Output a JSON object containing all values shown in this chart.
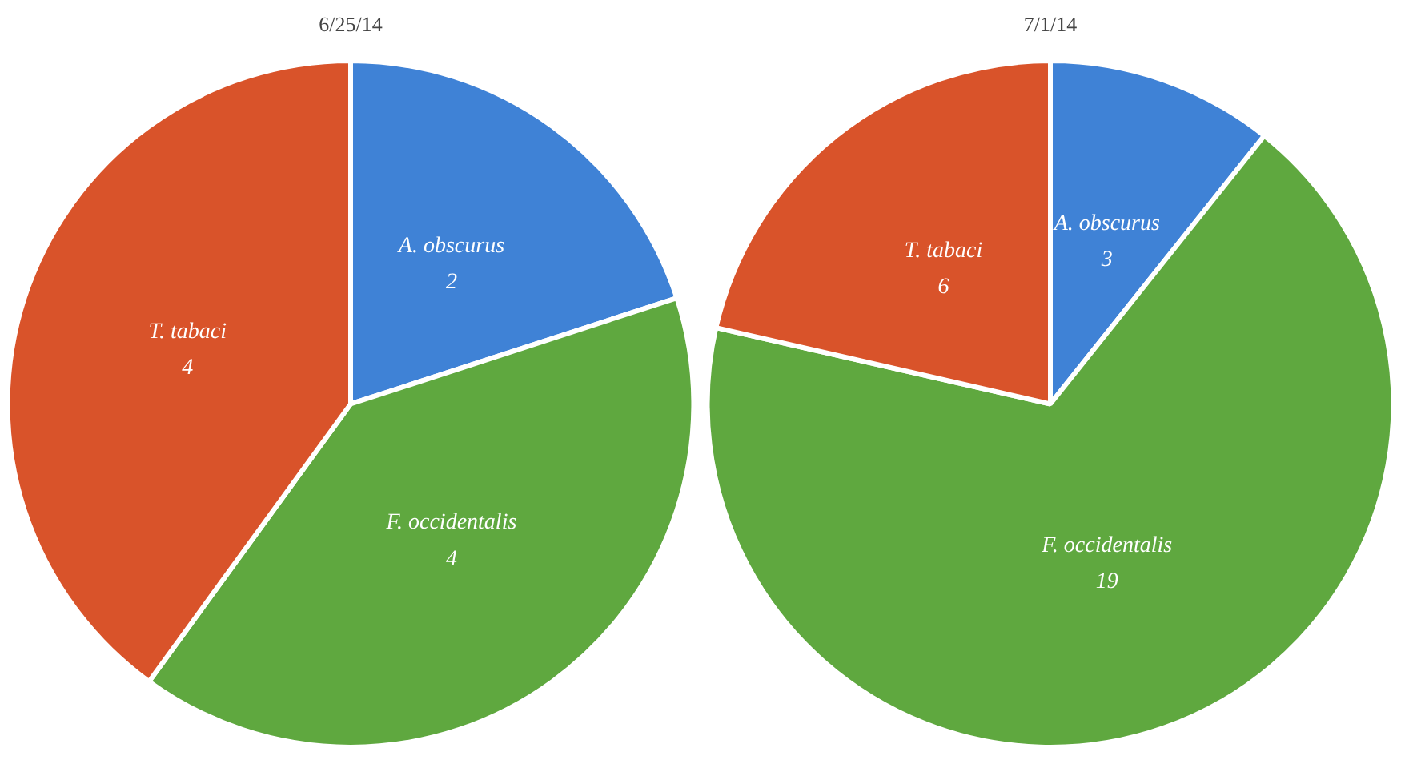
{
  "chart_data": [
    {
      "type": "pie",
      "title": "6/25/14",
      "categories": [
        "A. obscurus",
        "F. occidentalis",
        "T. tabaci"
      ],
      "values": [
        2,
        4,
        4
      ],
      "colors": [
        "#3f82d6",
        "#5fa83f",
        "#d9532a"
      ],
      "data_labels": true
    },
    {
      "type": "pie",
      "title": "7/1/14",
      "categories": [
        "A. obscurus",
        "F. occidentalis",
        "T. tabaci"
      ],
      "values": [
        3,
        19,
        6
      ],
      "colors": [
        "#3f82d6",
        "#5fa83f",
        "#d9532a"
      ],
      "data_labels": true
    }
  ]
}
